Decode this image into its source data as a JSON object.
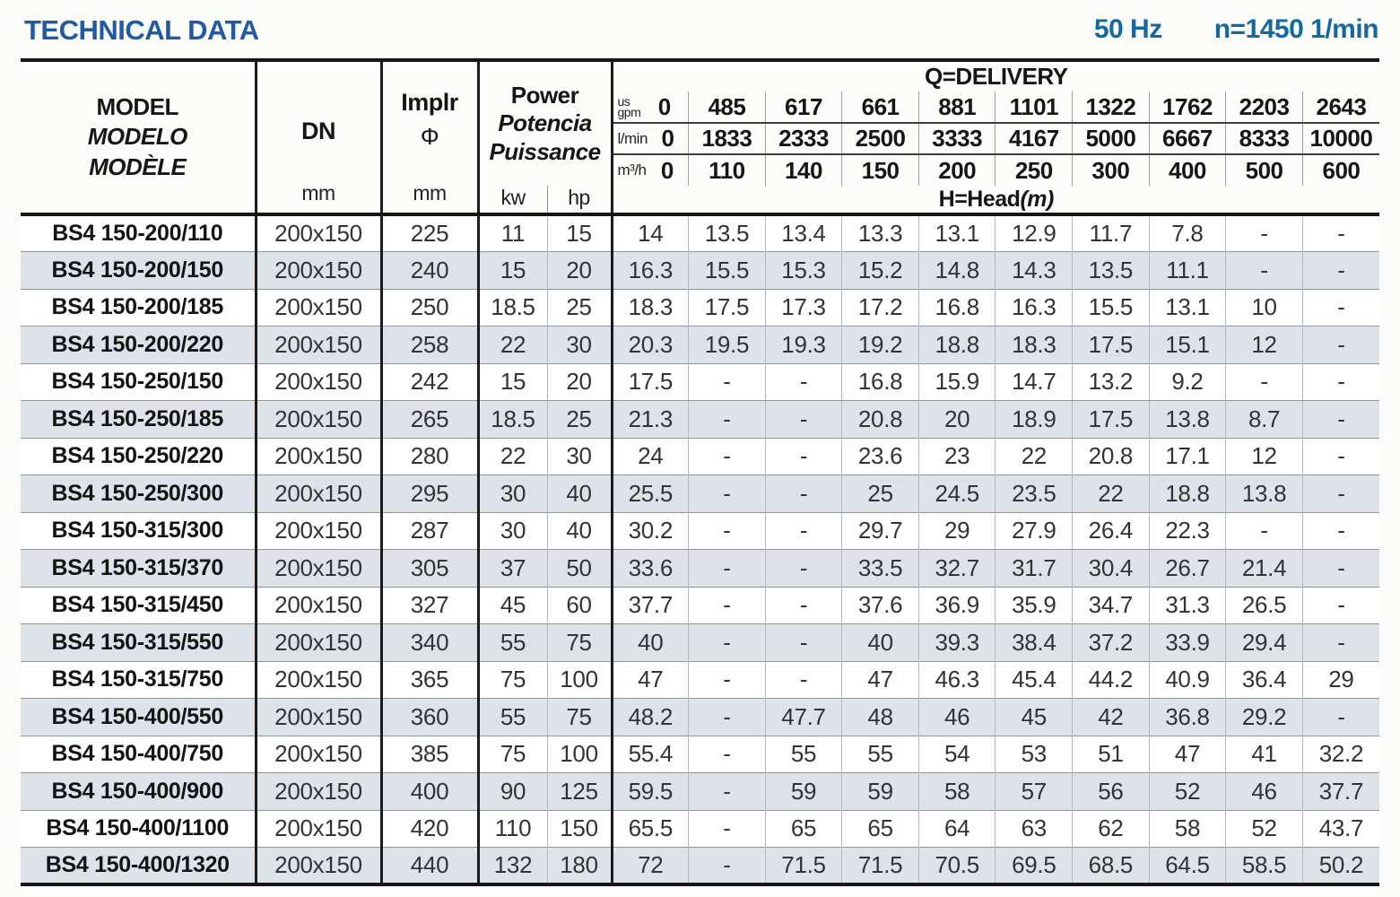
{
  "title": "TECHNICAL DATA",
  "frequency": "50 Hz",
  "speed": "n=1450 1/min",
  "colors": {
    "title_blue": "#1f5ba4",
    "spec_blue": "#1469a1",
    "row_shade": "#dde3e8"
  },
  "table": {
    "header": {
      "model_labels": [
        "MODEL",
        "MODELO",
        "MODÈLE"
      ],
      "dn_label": "DN",
      "dn_unit": "mm",
      "impeller_label": "Implr",
      "impeller_symbol": "Φ",
      "impeller_unit": "mm",
      "power_labels": [
        "Power",
        "Potencia",
        "Puissance"
      ],
      "power_units": [
        "kw",
        "hp"
      ],
      "delivery_label": "Q=DELIVERY",
      "head_label": "H=Head",
      "head_unit": "(m)",
      "flow_rows": [
        {
          "unit_lines": [
            "us",
            "gpm"
          ],
          "values": [
            "0",
            "485",
            "617",
            "661",
            "881",
            "1101",
            "1322",
            "1762",
            "2203",
            "2643"
          ]
        },
        {
          "unit_lines": [
            "l/min"
          ],
          "values": [
            "0",
            "1833",
            "2333",
            "2500",
            "3333",
            "4167",
            "5000",
            "6667",
            "8333",
            "10000"
          ]
        },
        {
          "unit_lines": [
            "m³/h"
          ],
          "values": [
            "0",
            "110",
            "140",
            "150",
            "200",
            "250",
            "300",
            "400",
            "500",
            "600"
          ]
        }
      ]
    },
    "rows": [
      {
        "model": "BS4 150-200/110",
        "dn": "200x150",
        "impeller": "225",
        "kw": "11",
        "hp": "15",
        "head": [
          "14",
          "13.5",
          "13.4",
          "13.3",
          "13.1",
          "12.9",
          "11.7",
          "7.8",
          "-",
          "-"
        ]
      },
      {
        "model": "BS4 150-200/150",
        "dn": "200x150",
        "impeller": "240",
        "kw": "15",
        "hp": "20",
        "head": [
          "16.3",
          "15.5",
          "15.3",
          "15.2",
          "14.8",
          "14.3",
          "13.5",
          "11.1",
          "-",
          "-"
        ]
      },
      {
        "model": "BS4 150-200/185",
        "dn": "200x150",
        "impeller": "250",
        "kw": "18.5",
        "hp": "25",
        "head": [
          "18.3",
          "17.5",
          "17.3",
          "17.2",
          "16.8",
          "16.3",
          "15.5",
          "13.1",
          "10",
          "-"
        ]
      },
      {
        "model": "BS4 150-200/220",
        "dn": "200x150",
        "impeller": "258",
        "kw": "22",
        "hp": "30",
        "head": [
          "20.3",
          "19.5",
          "19.3",
          "19.2",
          "18.8",
          "18.3",
          "17.5",
          "15.1",
          "12",
          "-"
        ]
      },
      {
        "model": "BS4 150-250/150",
        "dn": "200x150",
        "impeller": "242",
        "kw": "15",
        "hp": "20",
        "head": [
          "17.5",
          "-",
          "-",
          "16.8",
          "15.9",
          "14.7",
          "13.2",
          "9.2",
          "-",
          "-"
        ]
      },
      {
        "model": "BS4 150-250/185",
        "dn": "200x150",
        "impeller": "265",
        "kw": "18.5",
        "hp": "25",
        "head": [
          "21.3",
          "-",
          "-",
          "20.8",
          "20",
          "18.9",
          "17.5",
          "13.8",
          "8.7",
          "-"
        ]
      },
      {
        "model": "BS4 150-250/220",
        "dn": "200x150",
        "impeller": "280",
        "kw": "22",
        "hp": "30",
        "head": [
          "24",
          "-",
          "-",
          "23.6",
          "23",
          "22",
          "20.8",
          "17.1",
          "12",
          "-"
        ]
      },
      {
        "model": "BS4 150-250/300",
        "dn": "200x150",
        "impeller": "295",
        "kw": "30",
        "hp": "40",
        "head": [
          "25.5",
          "-",
          "-",
          "25",
          "24.5",
          "23.5",
          "22",
          "18.8",
          "13.8",
          "-"
        ]
      },
      {
        "model": "BS4 150-315/300",
        "dn": "200x150",
        "impeller": "287",
        "kw": "30",
        "hp": "40",
        "head": [
          "30.2",
          "-",
          "-",
          "29.7",
          "29",
          "27.9",
          "26.4",
          "22.3",
          "-",
          "-"
        ]
      },
      {
        "model": "BS4 150-315/370",
        "dn": "200x150",
        "impeller": "305",
        "kw": "37",
        "hp": "50",
        "head": [
          "33.6",
          "-",
          "-",
          "33.5",
          "32.7",
          "31.7",
          "30.4",
          "26.7",
          "21.4",
          "-"
        ]
      },
      {
        "model": "BS4 150-315/450",
        "dn": "200x150",
        "impeller": "327",
        "kw": "45",
        "hp": "60",
        "head": [
          "37.7",
          "-",
          "-",
          "37.6",
          "36.9",
          "35.9",
          "34.7",
          "31.3",
          "26.5",
          "-"
        ]
      },
      {
        "model": "BS4 150-315/550",
        "dn": "200x150",
        "impeller": "340",
        "kw": "55",
        "hp": "75",
        "head": [
          "40",
          "-",
          "-",
          "40",
          "39.3",
          "38.4",
          "37.2",
          "33.9",
          "29.4",
          "-"
        ]
      },
      {
        "model": "BS4 150-315/750",
        "dn": "200x150",
        "impeller": "365",
        "kw": "75",
        "hp": "100",
        "head": [
          "47",
          "-",
          "-",
          "47",
          "46.3",
          "45.4",
          "44.2",
          "40.9",
          "36.4",
          "29"
        ]
      },
      {
        "model": "BS4 150-400/550",
        "dn": "200x150",
        "impeller": "360",
        "kw": "55",
        "hp": "75",
        "head": [
          "48.2",
          "-",
          "47.7",
          "48",
          "46",
          "45",
          "42",
          "36.8",
          "29.2",
          "-"
        ]
      },
      {
        "model": "BS4 150-400/750",
        "dn": "200x150",
        "impeller": "385",
        "kw": "75",
        "hp": "100",
        "head": [
          "55.4",
          "-",
          "55",
          "55",
          "54",
          "53",
          "51",
          "47",
          "41",
          "32.2"
        ]
      },
      {
        "model": "BS4 150-400/900",
        "dn": "200x150",
        "impeller": "400",
        "kw": "90",
        "hp": "125",
        "head": [
          "59.5",
          "-",
          "59",
          "59",
          "58",
          "57",
          "56",
          "52",
          "46",
          "37.7"
        ]
      },
      {
        "model": "BS4 150-400/1100",
        "dn": "200x150",
        "impeller": "420",
        "kw": "110",
        "hp": "150",
        "head": [
          "65.5",
          "-",
          "65",
          "65",
          "64",
          "63",
          "62",
          "58",
          "52",
          "43.7"
        ]
      },
      {
        "model": "BS4 150-400/1320",
        "dn": "200x150",
        "impeller": "440",
        "kw": "132",
        "hp": "180",
        "head": [
          "72",
          "-",
          "71.5",
          "71.5",
          "70.5",
          "69.5",
          "68.5",
          "64.5",
          "58.5",
          "50.2"
        ]
      }
    ]
  }
}
